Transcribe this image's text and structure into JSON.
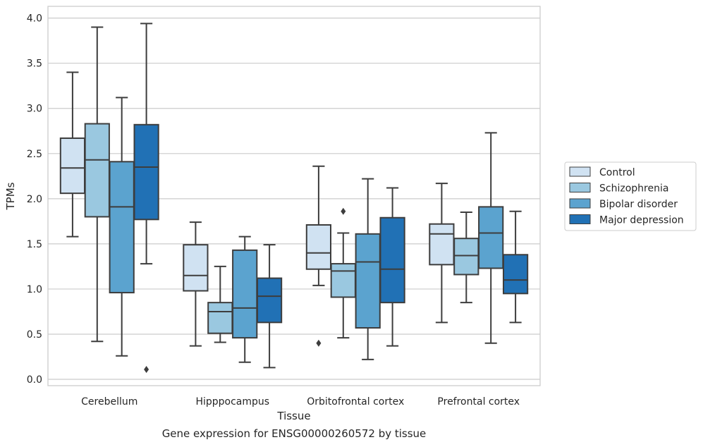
{
  "caption": "Gene expression for ENSG00000260572 by tissue",
  "chart_data": {
    "type": "box",
    "xlabel": "Tissue",
    "ylabel": "TPMs",
    "ylim": [
      -0.07,
      4.13
    ],
    "yticks": [
      "0.0",
      "0.5",
      "1.0",
      "1.5",
      "2.0",
      "2.5",
      "3.0",
      "3.5",
      "4.0"
    ],
    "grid": true,
    "legend_position": "right, outside plot",
    "categories": [
      "Cerebellum",
      "Hipppocampus",
      "Orbitofrontal cortex",
      "Prefrontal cortex"
    ],
    "series": [
      {
        "name": "Control",
        "color": "#d0e2f2",
        "boxes": [
          {
            "whislo": 1.58,
            "q1": 2.06,
            "med": 2.34,
            "q3": 2.67,
            "whishi": 3.4,
            "fliers": []
          },
          {
            "whislo": 0.37,
            "q1": 0.98,
            "med": 1.15,
            "q3": 1.49,
            "whishi": 1.74,
            "fliers": []
          },
          {
            "whislo": 1.04,
            "q1": 1.22,
            "med": 1.4,
            "q3": 1.71,
            "whishi": 2.36,
            "fliers": [
              0.4
            ]
          },
          {
            "whislo": 0.63,
            "q1": 1.27,
            "med": 1.61,
            "q3": 1.72,
            "whishi": 2.17,
            "fliers": []
          }
        ]
      },
      {
        "name": "Schizophrenia",
        "color": "#9ac8e0",
        "boxes": [
          {
            "whislo": 0.42,
            "q1": 1.8,
            "med": 2.43,
            "q3": 2.83,
            "whishi": 3.9,
            "fliers": []
          },
          {
            "whislo": 0.41,
            "q1": 0.51,
            "med": 0.75,
            "q3": 0.85,
            "whishi": 1.25,
            "fliers": []
          },
          {
            "whislo": 0.46,
            "q1": 0.91,
            "med": 1.2,
            "q3": 1.28,
            "whishi": 1.62,
            "fliers": [
              1.86
            ]
          },
          {
            "whislo": 0.85,
            "q1": 1.16,
            "med": 1.37,
            "q3": 1.56,
            "whishi": 1.85,
            "fliers": []
          }
        ]
      },
      {
        "name": "Bipolar disorder",
        "color": "#5ba3cf",
        "boxes": [
          {
            "whislo": 0.26,
            "q1": 0.96,
            "med": 1.91,
            "q3": 2.41,
            "whishi": 3.12,
            "fliers": []
          },
          {
            "whislo": 0.19,
            "q1": 0.46,
            "med": 0.79,
            "q3": 1.43,
            "whishi": 1.58,
            "fliers": []
          },
          {
            "whislo": 0.22,
            "q1": 0.57,
            "med": 1.3,
            "q3": 1.61,
            "whishi": 2.22,
            "fliers": []
          },
          {
            "whislo": 0.4,
            "q1": 1.23,
            "med": 1.62,
            "q3": 1.91,
            "whishi": 2.73,
            "fliers": []
          }
        ]
      },
      {
        "name": "Major depression",
        "color": "#2171b5",
        "boxes": [
          {
            "whislo": 1.28,
            "q1": 1.77,
            "med": 2.35,
            "q3": 2.82,
            "whishi": 3.94,
            "fliers": [
              0.11
            ]
          },
          {
            "whislo": 0.13,
            "q1": 0.63,
            "med": 0.92,
            "q3": 1.12,
            "whishi": 1.49,
            "fliers": []
          },
          {
            "whislo": 0.37,
            "q1": 0.85,
            "med": 1.22,
            "q3": 1.79,
            "whishi": 2.12,
            "fliers": []
          },
          {
            "whislo": 0.63,
            "q1": 0.95,
            "med": 1.1,
            "q3": 1.38,
            "whishi": 1.86,
            "fliers": []
          }
        ]
      }
    ]
  }
}
